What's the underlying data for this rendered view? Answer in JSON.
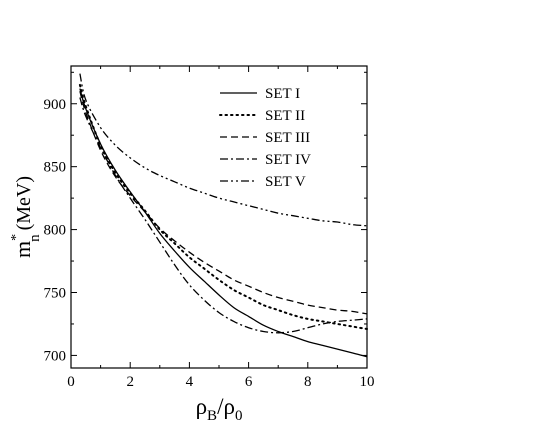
{
  "chart_data": {
    "type": "line",
    "xlabel": {
      "main": "ρ",
      "sub": "B",
      "slash": "/ρ",
      "sub2": "0"
    },
    "ylabel": {
      "main": "m",
      "sup": "*",
      "sub": "n",
      "unit": "(MeV)"
    },
    "xlim": [
      0,
      10
    ],
    "ylim": [
      690,
      930
    ],
    "x_ticks": [
      0,
      2,
      4,
      6,
      8,
      10
    ],
    "y_ticks": [
      700,
      750,
      800,
      850,
      900
    ],
    "grid": false,
    "legend_position": "top-right",
    "series": [
      {
        "name": "SET I",
        "style": "solid",
        "x": [
          0.3,
          0.5,
          1,
          1.5,
          2,
          2.5,
          3,
          3.5,
          4,
          4.5,
          5,
          5.5,
          6,
          6.5,
          7,
          7.5,
          8,
          8.5,
          9,
          9.5,
          10
        ],
        "y": [
          912,
          896,
          868,
          847,
          830,
          814,
          797,
          783,
          770,
          759,
          748,
          738,
          731,
          724,
          719,
          715,
          711,
          708,
          705,
          702,
          699
        ]
      },
      {
        "name": "SET II",
        "style": "dotted",
        "x": [
          0.3,
          0.5,
          1,
          1.5,
          2,
          2.5,
          3,
          3.5,
          4,
          4.5,
          5,
          5.5,
          6,
          6.5,
          7,
          7.5,
          8,
          8.5,
          9,
          9.5,
          10
        ],
        "y": [
          915,
          898,
          867,
          845,
          829,
          815,
          800,
          789,
          778,
          769,
          760,
          752,
          746,
          740,
          736,
          732,
          729,
          727,
          725,
          723,
          721
        ]
      },
      {
        "name": "SET III",
        "style": "dashed",
        "x": [
          0.3,
          0.5,
          1,
          1.5,
          2,
          2.5,
          3,
          3.5,
          4,
          4.5,
          5,
          5.5,
          6,
          6.5,
          7,
          7.5,
          8,
          8.5,
          9,
          9.5,
          10
        ],
        "y": [
          910,
          893,
          863,
          842,
          827,
          814,
          801,
          791,
          782,
          774,
          767,
          760,
          755,
          750,
          746,
          743,
          740,
          738,
          736,
          735,
          733
        ]
      },
      {
        "name": "SET IV",
        "style": "dashdot",
        "x": [
          0.3,
          0.5,
          1,
          1.5,
          2,
          2.5,
          3,
          3.5,
          4,
          4.5,
          5,
          5.5,
          6,
          6.5,
          7,
          7.5,
          8,
          8.5,
          9,
          9.5,
          10
        ],
        "y": [
          905,
          890,
          865,
          843,
          825,
          808,
          790,
          772,
          756,
          744,
          734,
          727,
          722,
          719,
          718,
          719,
          722,
          725,
          727,
          728,
          729
        ]
      },
      {
        "name": "SET V",
        "style": "dashdotdot",
        "x": [
          0.3,
          0.5,
          1,
          1.5,
          2,
          2.5,
          3,
          3.5,
          4,
          4.5,
          5,
          5.5,
          6,
          6.5,
          7,
          7.5,
          8,
          8.5,
          9,
          9.5,
          10
        ],
        "y": [
          924,
          903,
          881,
          867,
          857,
          849,
          843,
          838,
          833,
          829,
          825,
          822,
          819,
          816,
          813,
          811,
          809,
          807,
          806,
          804,
          803
        ]
      }
    ]
  }
}
